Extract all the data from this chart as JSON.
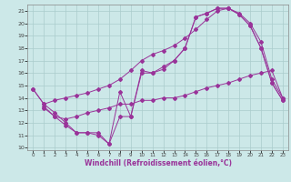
{
  "title": "",
  "xlabel": "Windchill (Refroidissement éolien,°C)",
  "ylabel": "",
  "bg_color": "#cce8e8",
  "grid_color": "#aacccc",
  "line_color": "#993399",
  "xlim": [
    -0.5,
    23.5
  ],
  "ylim": [
    9.8,
    21.5
  ],
  "xticks": [
    0,
    1,
    2,
    3,
    4,
    5,
    6,
    7,
    8,
    9,
    10,
    11,
    12,
    13,
    14,
    15,
    16,
    17,
    18,
    19,
    20,
    21,
    22,
    23
  ],
  "yticks": [
    10,
    11,
    12,
    13,
    14,
    15,
    16,
    17,
    18,
    19,
    20,
    21
  ],
  "line1_x": [
    0,
    1,
    2,
    3,
    4,
    5,
    6,
    7,
    8,
    9,
    10,
    11,
    12,
    13,
    14,
    15,
    16,
    17,
    18,
    19,
    20,
    21,
    22,
    23
  ],
  "line1_y": [
    14.7,
    13.5,
    13.8,
    14.0,
    14.2,
    14.4,
    14.7,
    15.0,
    15.5,
    16.2,
    17.0,
    17.5,
    17.8,
    18.2,
    18.8,
    19.5,
    20.3,
    21.0,
    21.2,
    20.8,
    20.0,
    18.5,
    15.5,
    14.0
  ],
  "line2_x": [
    0,
    1,
    2,
    3,
    4,
    5,
    6,
    7,
    8,
    9,
    10,
    11,
    12,
    13,
    14,
    15,
    16,
    17,
    18,
    19,
    20,
    21,
    22,
    23
  ],
  "line2_y": [
    14.7,
    13.5,
    12.8,
    12.0,
    11.2,
    11.2,
    11.2,
    10.3,
    12.5,
    12.5,
    16.2,
    16.0,
    16.5,
    17.0,
    18.0,
    20.5,
    20.8,
    21.2,
    21.2,
    20.7,
    19.8,
    18.0,
    15.2,
    13.8
  ],
  "line3_x": [
    1,
    2,
    3,
    4,
    5,
    6,
    7,
    8,
    9,
    10,
    11,
    12,
    13,
    14,
    15,
    16,
    17,
    18,
    19,
    20,
    21,
    22,
    23
  ],
  "line3_y": [
    13.3,
    12.5,
    11.8,
    11.2,
    11.2,
    11.0,
    10.3,
    14.5,
    12.5,
    16.0,
    16.0,
    16.3,
    17.0,
    18.0,
    20.5,
    20.8,
    21.2,
    21.2,
    20.7,
    19.8,
    18.0,
    15.2,
    13.8
  ],
  "line4_x": [
    1,
    2,
    3,
    4,
    5,
    6,
    7,
    8,
    9,
    10,
    11,
    12,
    13,
    14,
    15,
    16,
    17,
    18,
    19,
    20,
    21,
    22,
    23
  ],
  "line4_y": [
    13.2,
    12.5,
    12.3,
    12.5,
    12.8,
    13.0,
    13.2,
    13.5,
    13.5,
    13.8,
    13.8,
    14.0,
    14.0,
    14.2,
    14.5,
    14.8,
    15.0,
    15.2,
    15.5,
    15.8,
    16.0,
    16.2,
    14.0
  ]
}
